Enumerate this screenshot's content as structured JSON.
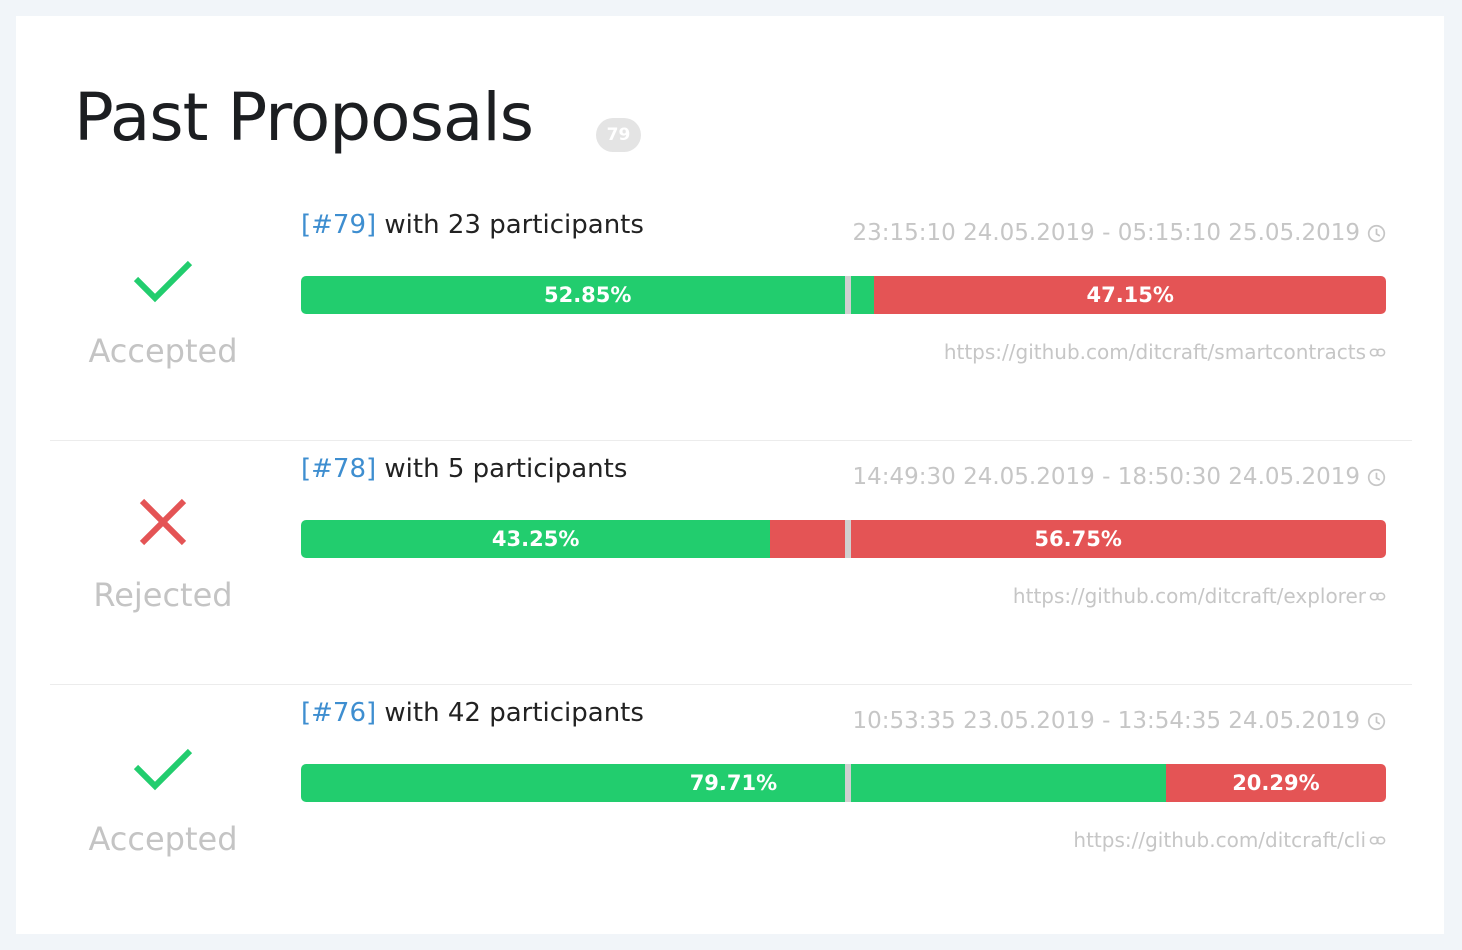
{
  "header": {
    "title": "Past Proposals",
    "count": "79"
  },
  "colors": {
    "accepted": "#22cd6e",
    "rejected": "#e45455",
    "id_link": "#3e8ed0",
    "muted_text": "#c6c6c6"
  },
  "proposals": [
    {
      "status": "Accepted",
      "status_icon": "checkmark-icon",
      "id": "[#79]",
      "participants_text": " with 23 participants",
      "time_range": "23:15:10 24.05.2019 - 05:15:10 25.05.2019",
      "yes_label": "52.85%",
      "no_label": "47.15%",
      "yes_percent": 52.85,
      "no_percent": 47.15,
      "link": "https://github.com/ditcraft/smartcontracts"
    },
    {
      "status": "Rejected",
      "status_icon": "cross-icon",
      "id": "[#78]",
      "participants_text": " with 5 participants",
      "time_range": "14:49:30 24.05.2019 - 18:50:30 24.05.2019",
      "yes_label": "43.25%",
      "no_label": "56.75%",
      "yes_percent": 43.25,
      "no_percent": 56.75,
      "link": "https://github.com/ditcraft/explorer"
    },
    {
      "status": "Accepted",
      "status_icon": "checkmark-icon",
      "id": "[#76]",
      "participants_text": " with 42 participants",
      "time_range": "10:53:35 23.05.2019 - 13:54:35 24.05.2019",
      "yes_label": "79.71%",
      "no_label": "20.29%",
      "yes_percent": 79.71,
      "no_percent": 20.29,
      "link": "https://github.com/ditcraft/cli"
    }
  ]
}
